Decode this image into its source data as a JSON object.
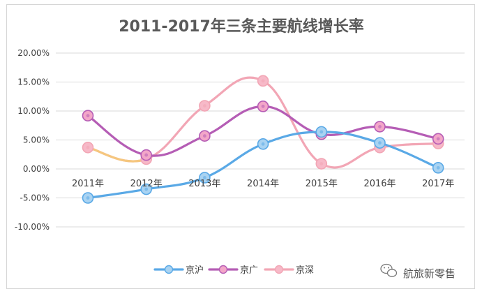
{
  "chart_data": {
    "type": "line",
    "title": "2011-2017年三条主要航线增长率",
    "categories": [
      "2011年",
      "2012年",
      "2013年",
      "2014年",
      "2015年",
      "2016年",
      "2017年"
    ],
    "y_ticks": [
      "20.00%",
      "15.00%",
      "10.00%",
      "5.00%",
      "0.00%",
      "-5.00%",
      "-10.00%"
    ],
    "ylim": [
      -0.1,
      0.2
    ],
    "grid": true,
    "legend_position": "bottom",
    "smooth": true,
    "series": [
      {
        "name": "京沪",
        "values": [
          -0.05,
          -0.035,
          -0.015,
          0.043,
          0.064,
          0.045,
          0.002
        ],
        "color": "#5aa9e6",
        "marker_fill": "#a9d3f2"
      },
      {
        "name": "京广",
        "values": [
          0.092,
          0.024,
          0.057,
          0.108,
          0.06,
          0.073,
          0.052
        ],
        "color": "#b55db5",
        "marker_fill": "#f3a6c8"
      },
      {
        "name": "京深",
        "values": [
          0.037,
          0.017,
          0.109,
          0.152,
          0.009,
          0.037,
          0.044
        ],
        "color": "#f2a6b5",
        "marker_fill": "#f7b9c8"
      }
    ],
    "series_draw_order": [
      2,
      1,
      0
    ],
    "series_colors": {
      "京深_segment_2011_2012": "#f5c77e"
    }
  },
  "watermark": {
    "icon": "wechat-icon",
    "text": "航旅新零售"
  }
}
